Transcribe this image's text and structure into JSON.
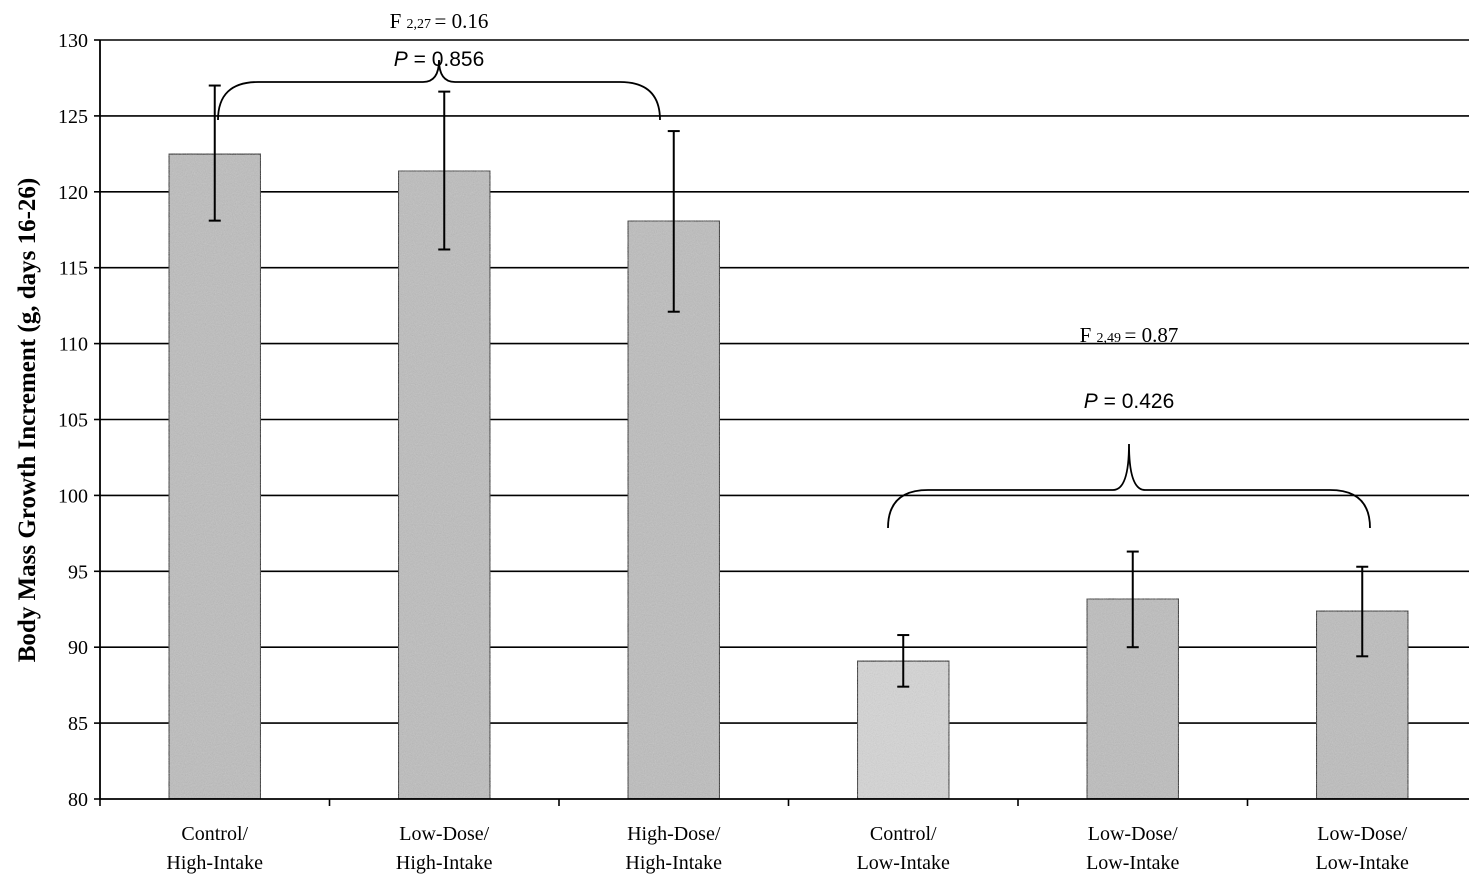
{
  "chart_data": {
    "type": "bar",
    "ylabel": "Body Mass Growth Increment (g, days 16-26)",
    "ylim": [
      80,
      130
    ],
    "ytick_step": 5,
    "grid": true,
    "categories": [
      {
        "line1": "Control/",
        "line2": "High-Intake"
      },
      {
        "line1": "Low-Dose/",
        "line2": "High-Intake"
      },
      {
        "line1": "High-Dose/",
        "line2": "High-Intake"
      },
      {
        "line1": "Control/",
        "line2": "Low-Intake"
      },
      {
        "line1": "Low-Dose/",
        "line2": "Low-Intake"
      },
      {
        "line1": "Low-Dose/",
        "line2": "Low-Intake"
      }
    ],
    "values": [
      122.5,
      121.4,
      118.1,
      89.1,
      93.2,
      92.4
    ],
    "error_low": [
      118.1,
      116.2,
      112.1,
      87.4,
      90.0,
      89.4
    ],
    "error_high": [
      127.0,
      126.6,
      124.0,
      90.8,
      96.3,
      95.3
    ],
    "annotations": [
      {
        "f_prefix": "F",
        "f_sub": "2,27",
        "f_value": "= 0.16",
        "p_label": "P",
        "p_value": "= 0.856",
        "groups": [
          0,
          1,
          2
        ]
      },
      {
        "f_prefix": "F",
        "f_sub": "2,49",
        "f_value": "= 0.87",
        "p_label": "P",
        "p_value": "= 0.426",
        "groups": [
          3,
          4,
          5
        ]
      }
    ],
    "colors": {
      "bar": "#bdbdbd",
      "bar_light": "#d6d6d6",
      "axis": "#000000",
      "grid": "#000000"
    }
  }
}
